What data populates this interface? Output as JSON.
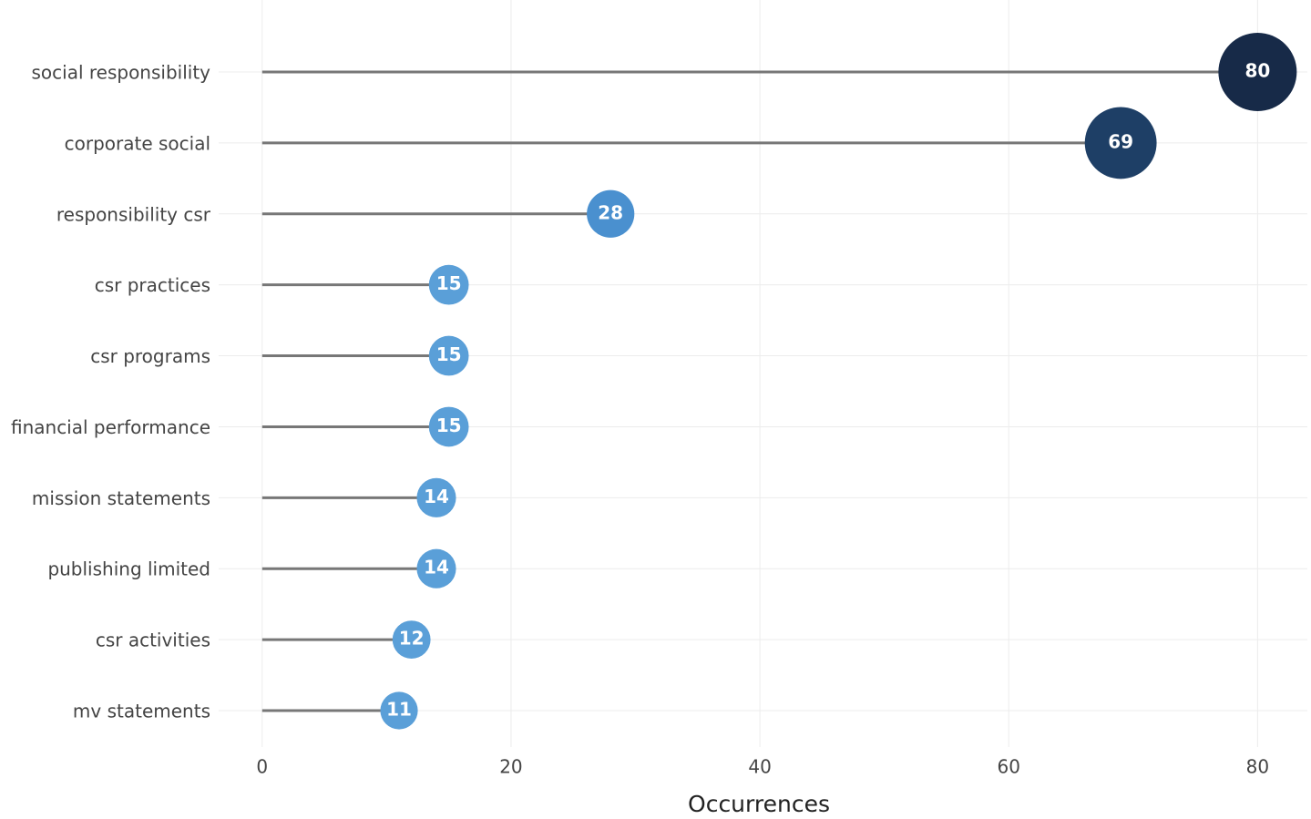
{
  "chart_data": {
    "type": "lollipop",
    "categories": [
      "social responsibility",
      "corporate social",
      "responsibility csr",
      "csr practices",
      "csr programs",
      "financial performance",
      "mission statements",
      "publishing limited",
      "csr activities",
      "mv statements"
    ],
    "values": [
      80,
      69,
      28,
      15,
      15,
      15,
      14,
      14,
      12,
      11
    ],
    "colors": [
      "#172a48",
      "#1e3f66",
      "#4a90cf",
      "#5a9fd8",
      "#5a9fd8",
      "#5a9fd8",
      "#5a9fd8",
      "#5a9fd8",
      "#5a9fd8",
      "#5a9fd8"
    ],
    "stem_color": "#777777",
    "xlabel": "Occurrences",
    "xlim": [
      -3.5,
      84
    ],
    "xticks": [
      0,
      20,
      40,
      60,
      80
    ],
    "grid": true
  }
}
